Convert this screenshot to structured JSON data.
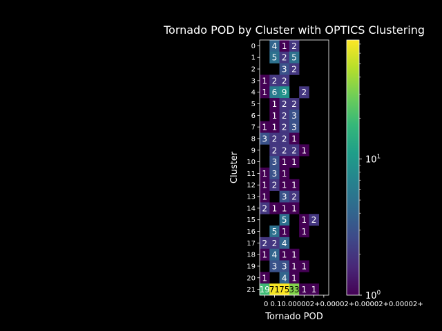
{
  "chart_data": {
    "type": "heatmap",
    "title": "Tornado POD by Cluster with OPTICS Clustering",
    "xlabel": "Tornado POD",
    "ylabel": "Cluster",
    "x_tick_labels": [
      "0",
      "0.1",
      "0.2",
      "0.3",
      "0.4",
      "0.5",
      "0.6+"
    ],
    "x_tick_overlap_text": "0 0.10.000002+0.00002+0.00002+0.00002+",
    "y_tick_labels": [
      "0",
      "1",
      "2",
      "3",
      "4",
      "5",
      "6",
      "7",
      "8",
      "9",
      "10",
      "11",
      "12",
      "13",
      "14",
      "15",
      "16",
      "17",
      "18",
      "19",
      "20",
      "21"
    ],
    "colorbar": {
      "scale": "log",
      "min": 1,
      "max": 75,
      "ticks": [
        {
          "value": 1,
          "label": "10",
          "exp": "0"
        },
        {
          "value": 10,
          "label": "10",
          "exp": "1"
        }
      ]
    },
    "colormap": [
      "#440154",
      "#482878",
      "#3e4989",
      "#31688e",
      "#26828e",
      "#1f9e89",
      "#35b779",
      "#6ece58",
      "#b5de2b",
      "#fde725"
    ],
    "values": [
      [
        null,
        4,
        1,
        2,
        null,
        null,
        null
      ],
      [
        null,
        5,
        2,
        5,
        null,
        null,
        null
      ],
      [
        null,
        null,
        3,
        2,
        null,
        null,
        null
      ],
      [
        1,
        2,
        2,
        null,
        null,
        null,
        null
      ],
      [
        1,
        6,
        9,
        null,
        2,
        null,
        null
      ],
      [
        null,
        1,
        2,
        2,
        null,
        null,
        null
      ],
      [
        null,
        1,
        2,
        3,
        null,
        null,
        null
      ],
      [
        1,
        1,
        2,
        3,
        null,
        null,
        null
      ],
      [
        3,
        2,
        2,
        1,
        null,
        null,
        null
      ],
      [
        null,
        2,
        2,
        2,
        1,
        null,
        null
      ],
      [
        null,
        3,
        1,
        1,
        null,
        null,
        null
      ],
      [
        1,
        3,
        1,
        null,
        null,
        null,
        null
      ],
      [
        1,
        2,
        1,
        1,
        null,
        null,
        null
      ],
      [
        1,
        null,
        3,
        2,
        null,
        null,
        null
      ],
      [
        2,
        1,
        1,
        1,
        null,
        null,
        null
      ],
      [
        null,
        null,
        5,
        null,
        1,
        2,
        null
      ],
      [
        null,
        5,
        1,
        null,
        1,
        null,
        null
      ],
      [
        2,
        2,
        4,
        null,
        null,
        null,
        null
      ],
      [
        1,
        4,
        1,
        1,
        null,
        null,
        null
      ],
      [
        null,
        3,
        3,
        1,
        1,
        null,
        null
      ],
      [
        1,
        null,
        4,
        1,
        null,
        null,
        null
      ],
      [
        19,
        71,
        75,
        33,
        1,
        1,
        null
      ]
    ]
  }
}
